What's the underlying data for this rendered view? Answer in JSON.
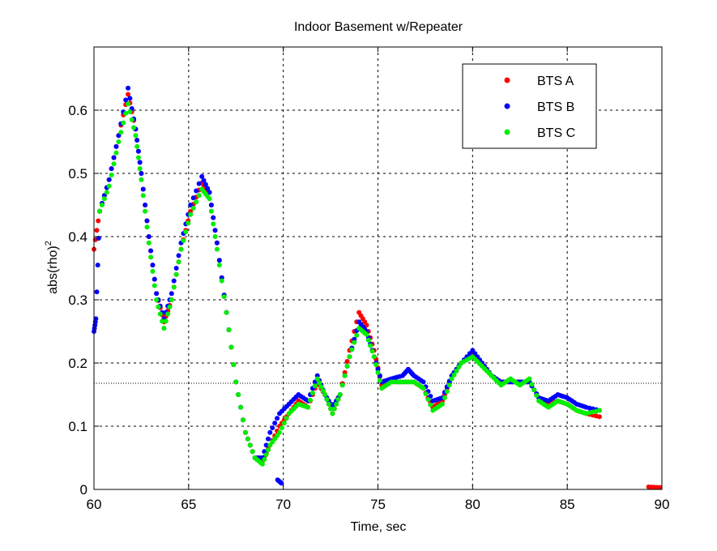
{
  "chart_data": {
    "type": "scatter",
    "title": "Indoor Basement w/Repeater",
    "xlabel": "Time, sec",
    "ylabel_base": "abs(rho)",
    "ylabel_sup": "2",
    "xlim": [
      60,
      90
    ],
    "ylim": [
      0,
      0.7
    ],
    "xticks": [
      "60",
      "65",
      "70",
      "75",
      "80",
      "85",
      "90"
    ],
    "yticks": [
      "0",
      "0.1",
      "0.2",
      "0.3",
      "0.4",
      "0.5",
      "0.6"
    ],
    "grid": true,
    "legend_position": "top-right",
    "reference_line_y": 0.168,
    "series": [
      {
        "name": "BTS A",
        "color": "#ff0000",
        "points": [
          [
            60.0,
            0.38
          ],
          [
            60.3,
            0.44
          ],
          [
            60.8,
            0.49
          ],
          [
            61.3,
            0.56
          ],
          [
            61.8,
            0.625
          ],
          [
            62.2,
            0.57
          ],
          [
            62.5,
            0.5
          ],
          [
            62.9,
            0.4
          ],
          [
            63.3,
            0.31
          ],
          [
            63.7,
            0.265
          ],
          [
            64.1,
            0.3
          ],
          [
            64.6,
            0.38
          ],
          [
            65.1,
            0.44
          ],
          [
            65.7,
            0.485
          ],
          [
            66.1,
            0.47
          ],
          [
            66.5,
            0.39
          ],
          [
            67.0,
            0.28
          ],
          [
            67.5,
            0.17
          ],
          [
            68.0,
            0.09
          ],
          [
            68.5,
            0.05
          ],
          [
            68.9,
            0.045
          ],
          [
            69.3,
            0.07
          ],
          [
            69.8,
            0.1
          ],
          [
            70.3,
            0.12
          ],
          [
            70.8,
            0.14
          ],
          [
            71.3,
            0.13
          ],
          [
            71.8,
            0.17
          ],
          [
            72.2,
            0.15
          ],
          [
            72.6,
            0.12
          ],
          [
            73.0,
            0.15
          ],
          [
            73.5,
            0.22
          ],
          [
            74.0,
            0.28
          ],
          [
            74.4,
            0.26
          ],
          [
            74.8,
            0.22
          ],
          [
            75.2,
            0.165
          ],
          [
            75.7,
            0.17
          ],
          [
            76.3,
            0.17
          ],
          [
            76.9,
            0.17
          ],
          [
            77.4,
            0.16
          ],
          [
            77.9,
            0.13
          ],
          [
            78.4,
            0.14
          ],
          [
            78.9,
            0.18
          ],
          [
            79.4,
            0.2
          ],
          [
            80.0,
            0.215
          ],
          [
            80.5,
            0.2
          ],
          [
            81.0,
            0.18
          ],
          [
            81.5,
            0.17
          ],
          [
            82.0,
            0.17
          ],
          [
            82.5,
            0.17
          ],
          [
            83.0,
            0.17
          ],
          [
            83.5,
            0.145
          ],
          [
            84.0,
            0.135
          ],
          [
            84.5,
            0.14
          ],
          [
            85.0,
            0.135
          ],
          [
            85.5,
            0.125
          ],
          [
            86.0,
            0.12
          ],
          [
            86.7,
            0.115
          ],
          [
            89.3,
            0.004
          ],
          [
            89.9,
            0.003
          ]
        ]
      },
      {
        "name": "BTS B",
        "color": "#0000ff",
        "points": [
          [
            60.0,
            0.25
          ],
          [
            60.1,
            0.27
          ],
          [
            60.3,
            0.44
          ],
          [
            60.8,
            0.49
          ],
          [
            61.3,
            0.56
          ],
          [
            61.8,
            0.635
          ],
          [
            62.2,
            0.57
          ],
          [
            62.5,
            0.5
          ],
          [
            62.9,
            0.4
          ],
          [
            63.3,
            0.31
          ],
          [
            63.7,
            0.27
          ],
          [
            64.1,
            0.31
          ],
          [
            64.6,
            0.39
          ],
          [
            65.1,
            0.45
          ],
          [
            65.7,
            0.495
          ],
          [
            66.1,
            0.47
          ],
          [
            66.5,
            0.39
          ],
          [
            67.0,
            0.28
          ],
          [
            67.5,
            0.17
          ],
          [
            68.0,
            0.09
          ],
          [
            68.5,
            0.05
          ],
          [
            68.9,
            0.05
          ],
          [
            69.3,
            0.09
          ],
          [
            69.8,
            0.12
          ],
          [
            70.3,
            0.135
          ],
          [
            70.8,
            0.15
          ],
          [
            71.3,
            0.14
          ],
          [
            71.8,
            0.18
          ],
          [
            72.2,
            0.15
          ],
          [
            72.6,
            0.13
          ],
          [
            73.0,
            0.15
          ],
          [
            73.5,
            0.21
          ],
          [
            74.0,
            0.265
          ],
          [
            74.4,
            0.25
          ],
          [
            74.8,
            0.21
          ],
          [
            75.2,
            0.17
          ],
          [
            75.7,
            0.175
          ],
          [
            76.3,
            0.18
          ],
          [
            76.6,
            0.19
          ],
          [
            76.9,
            0.18
          ],
          [
            77.4,
            0.17
          ],
          [
            77.9,
            0.14
          ],
          [
            78.4,
            0.145
          ],
          [
            78.9,
            0.18
          ],
          [
            79.4,
            0.2
          ],
          [
            80.0,
            0.22
          ],
          [
            80.5,
            0.2
          ],
          [
            81.0,
            0.18
          ],
          [
            81.5,
            0.17
          ],
          [
            82.0,
            0.17
          ],
          [
            82.5,
            0.17
          ],
          [
            83.0,
            0.17
          ],
          [
            83.5,
            0.145
          ],
          [
            84.0,
            0.14
          ],
          [
            84.5,
            0.15
          ],
          [
            85.0,
            0.145
          ],
          [
            85.5,
            0.135
          ],
          [
            86.0,
            0.13
          ],
          [
            86.7,
            0.125
          ],
          [
            69.7,
            0.015
          ],
          [
            69.9,
            0.01
          ]
        ]
      },
      {
        "name": "BTS C",
        "color": "#00ee00",
        "points": [
          [
            60.3,
            0.44
          ],
          [
            60.8,
            0.48
          ],
          [
            61.3,
            0.55
          ],
          [
            61.8,
            0.61
          ],
          [
            62.2,
            0.56
          ],
          [
            62.5,
            0.49
          ],
          [
            62.9,
            0.39
          ],
          [
            63.3,
            0.3
          ],
          [
            63.7,
            0.255
          ],
          [
            64.1,
            0.3
          ],
          [
            64.6,
            0.38
          ],
          [
            65.1,
            0.435
          ],
          [
            65.7,
            0.475
          ],
          [
            66.1,
            0.46
          ],
          [
            66.5,
            0.38
          ],
          [
            67.0,
            0.28
          ],
          [
            67.5,
            0.17
          ],
          [
            68.0,
            0.09
          ],
          [
            68.5,
            0.05
          ],
          [
            68.9,
            0.04
          ],
          [
            69.3,
            0.07
          ],
          [
            69.8,
            0.09
          ],
          [
            70.3,
            0.12
          ],
          [
            70.8,
            0.135
          ],
          [
            71.3,
            0.13
          ],
          [
            71.8,
            0.175
          ],
          [
            72.2,
            0.15
          ],
          [
            72.6,
            0.12
          ],
          [
            73.0,
            0.15
          ],
          [
            73.5,
            0.21
          ],
          [
            74.0,
            0.255
          ],
          [
            74.4,
            0.245
          ],
          [
            74.8,
            0.21
          ],
          [
            75.2,
            0.16
          ],
          [
            75.7,
            0.17
          ],
          [
            76.3,
            0.17
          ],
          [
            76.9,
            0.17
          ],
          [
            77.4,
            0.16
          ],
          [
            77.9,
            0.125
          ],
          [
            78.4,
            0.135
          ],
          [
            78.9,
            0.175
          ],
          [
            79.4,
            0.2
          ],
          [
            80.0,
            0.21
          ],
          [
            80.5,
            0.195
          ],
          [
            81.0,
            0.18
          ],
          [
            81.5,
            0.165
          ],
          [
            82.0,
            0.175
          ],
          [
            82.5,
            0.165
          ],
          [
            83.0,
            0.175
          ],
          [
            83.5,
            0.14
          ],
          [
            84.0,
            0.13
          ],
          [
            84.5,
            0.14
          ],
          [
            85.0,
            0.135
          ],
          [
            85.5,
            0.125
          ],
          [
            86.0,
            0.12
          ],
          [
            86.7,
            0.125
          ]
        ]
      }
    ]
  }
}
